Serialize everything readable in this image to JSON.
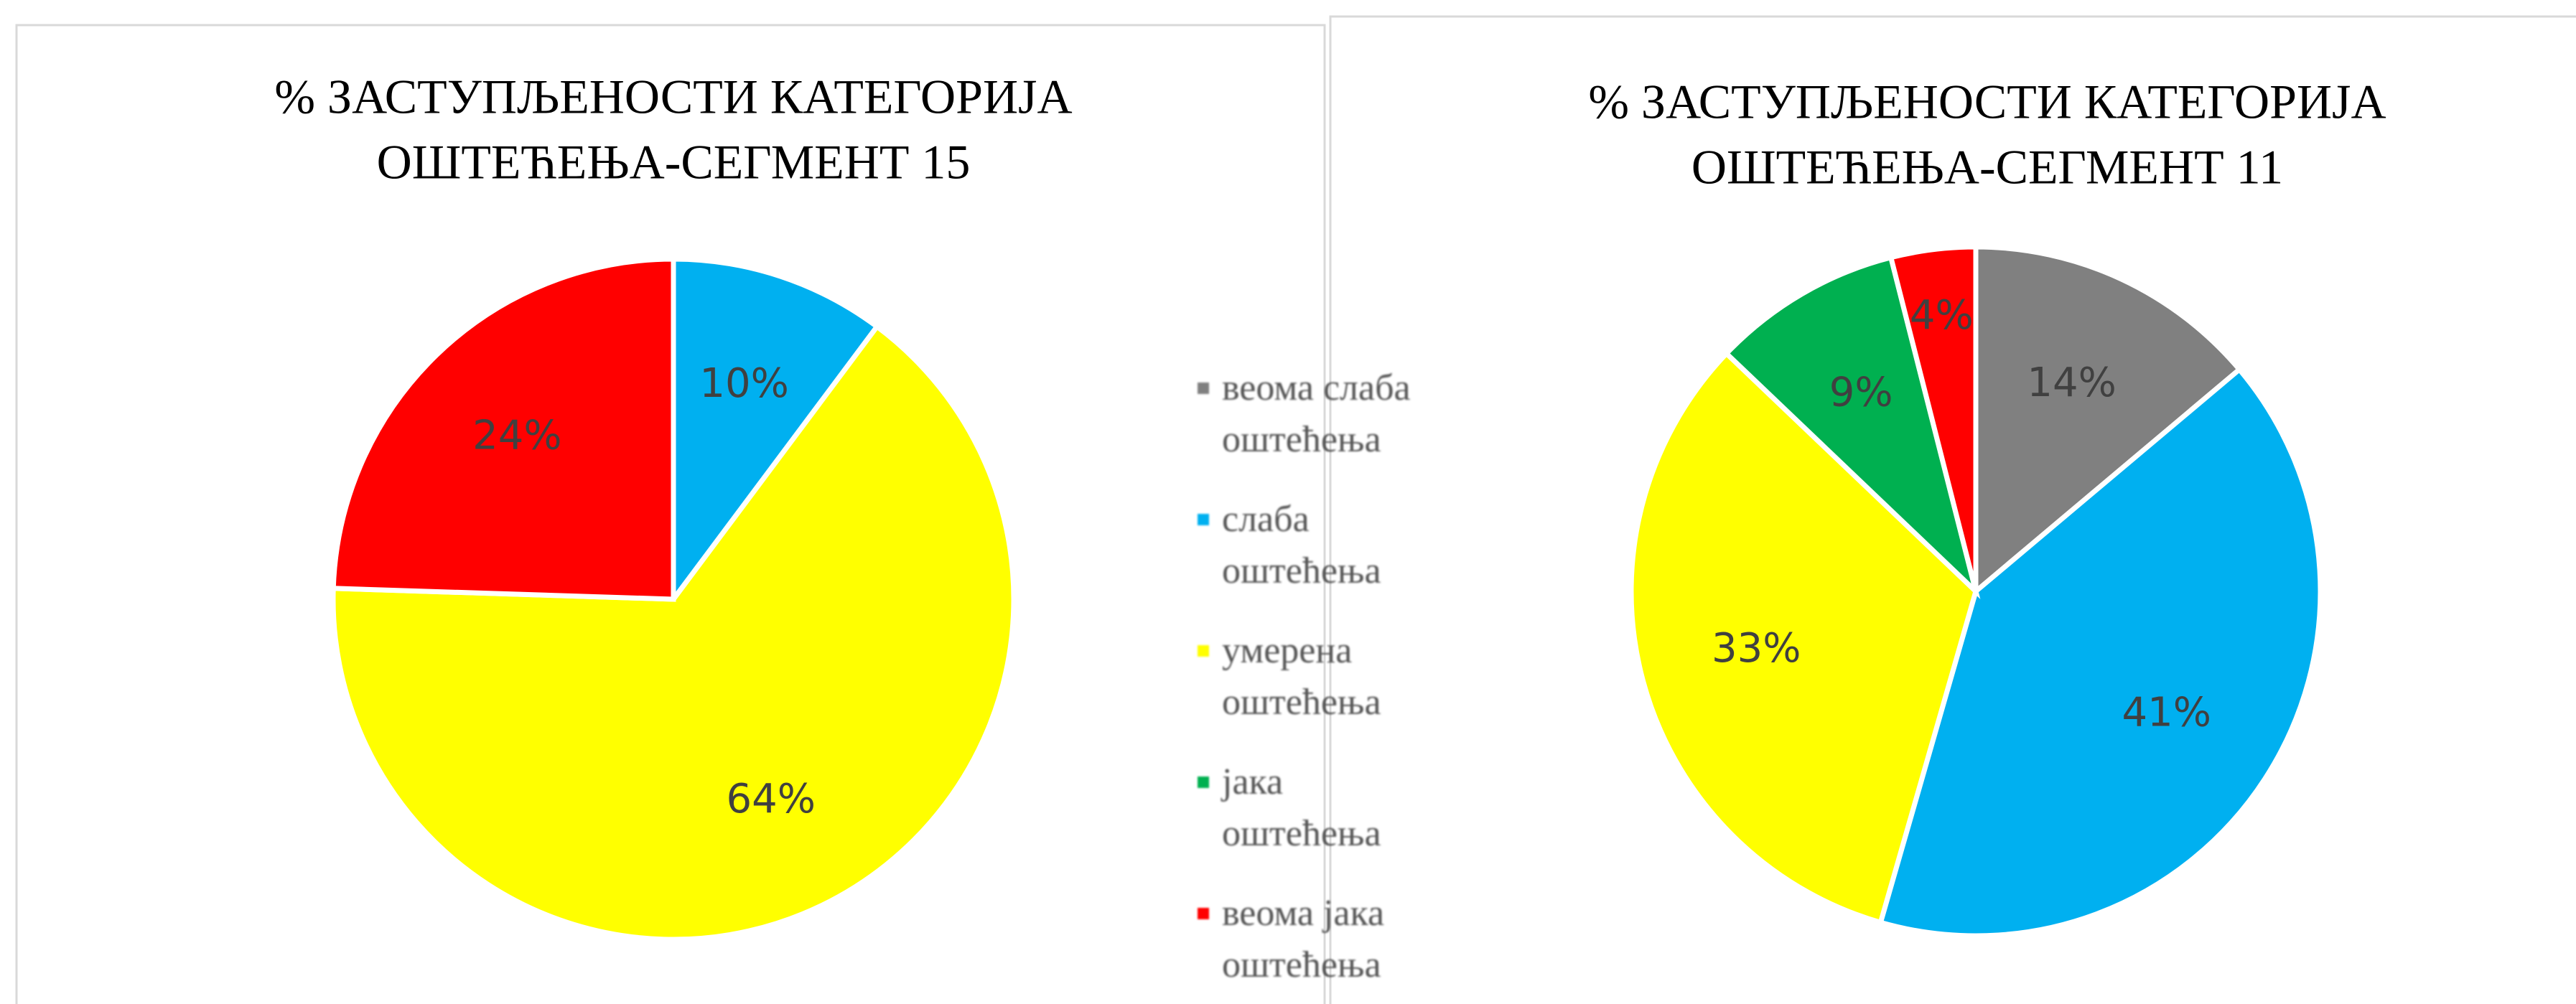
{
  "legend": {
    "categories": [
      "веома слаба оштећења",
      "слаба оштећења",
      "умерена оштећења",
      "јака оштећења",
      "веома јака оштећења"
    ],
    "colors": [
      "#808080",
      "#00b0f0",
      "#ffff00",
      "#00b050",
      "#ff0000"
    ]
  },
  "chart_data": [
    {
      "type": "pie",
      "title": [
        "% ЗАСТУПЉЕНОСТИ КАТЕГОРИЈА",
        "ОШТЕЋЕЊА-СЕГМЕНТ 15"
      ],
      "values": [
        null,
        10,
        64,
        null,
        24
      ],
      "value_labels": [
        null,
        "10%",
        "64%",
        null,
        "24%"
      ]
    },
    {
      "type": "pie",
      "title": [
        "% ЗАСТУПЉЕНОСТИ КАТЕГОРИЈА",
        "ОШТЕЋЕЊА-СЕГМЕНТ 11"
      ],
      "values": [
        14,
        41,
        33,
        9,
        4
      ],
      "value_labels": [
        "14%",
        "41%",
        "33%",
        "9%",
        "4%"
      ]
    }
  ]
}
